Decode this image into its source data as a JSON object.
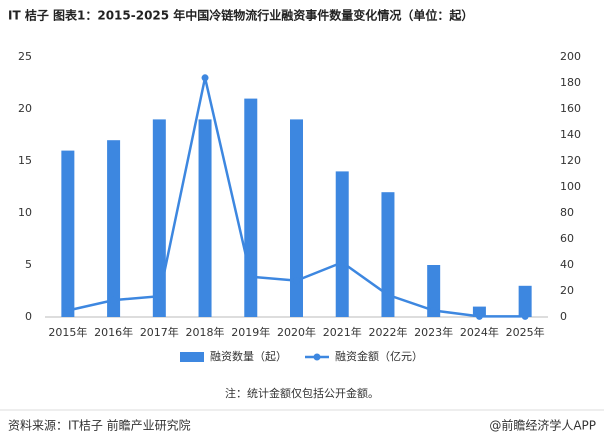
{
  "chart_data": {
    "type": "bar",
    "title": "IT 桔子  图表1：2015-2025 年中国冷链物流行业融资事件数量变化情况（单位：起）",
    "categories": [
      "2015年",
      "2016年",
      "2017年",
      "2018年",
      "2019年",
      "2020年",
      "2021年",
      "2022年",
      "2023年",
      "2024年",
      "2025年"
    ],
    "series": [
      {
        "name": "融资数量（起）",
        "type": "bar",
        "color": "#3d87e0",
        "values": [
          16,
          17,
          19,
          19,
          21,
          19,
          14,
          12,
          5,
          1,
          3
        ]
      },
      {
        "name": "融资金额（亿元）",
        "type": "line",
        "axis": "y2",
        "color": "#3d87e0",
        "values": [
          5,
          13,
          16,
          184,
          31,
          28,
          42,
          17,
          5,
          0.5,
          0.5
        ]
      }
    ],
    "ylim": [
      0,
      25
    ],
    "yticks": [
      0,
      5,
      10,
      15,
      20,
      25
    ],
    "y2lim": [
      0,
      200
    ],
    "y2ticks": [
      0,
      20,
      40,
      60,
      80,
      100,
      120,
      140,
      160,
      180,
      200
    ],
    "grid": false,
    "note": "注：统计金额仅包括公开金额。",
    "source": "资料来源：IT桔子 前瞻产业研究院",
    "brand": "@前瞻经济学人APP"
  }
}
